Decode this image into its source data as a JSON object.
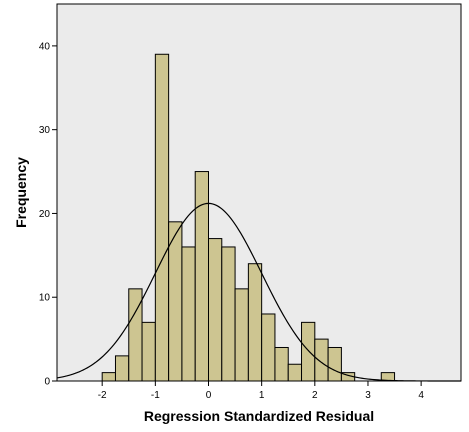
{
  "chart_data": {
    "type": "bar",
    "xlabel": "Regression Standardized Residual",
    "ylabel": "Frequency",
    "xlim": [
      -2.85,
      4.75
    ],
    "ylim": [
      0,
      45
    ],
    "x_ticks": [
      -2,
      -1,
      0,
      1,
      2,
      3,
      4
    ],
    "y_ticks": [
      0,
      10,
      20,
      30,
      40
    ],
    "bin_width": 0.25,
    "bins": [
      {
        "x0": -2.0,
        "value": 1
      },
      {
        "x0": -1.75,
        "value": 3
      },
      {
        "x0": -1.5,
        "value": 11
      },
      {
        "x0": -1.25,
        "value": 7
      },
      {
        "x0": -1.0,
        "value": 39
      },
      {
        "x0": -0.75,
        "value": 19
      },
      {
        "x0": -0.5,
        "value": 16
      },
      {
        "x0": -0.25,
        "value": 25
      },
      {
        "x0": 0.0,
        "value": 17
      },
      {
        "x0": 0.25,
        "value": 16
      },
      {
        "x0": 0.5,
        "value": 11
      },
      {
        "x0": 0.75,
        "value": 14
      },
      {
        "x0": 1.0,
        "value": 8
      },
      {
        "x0": 1.25,
        "value": 4
      },
      {
        "x0": 1.5,
        "value": 2
      },
      {
        "x0": 1.75,
        "value": 7
      },
      {
        "x0": 2.0,
        "value": 5
      },
      {
        "x0": 2.25,
        "value": 4
      },
      {
        "x0": 2.5,
        "value": 1
      },
      {
        "x0": 3.25,
        "value": 1
      }
    ],
    "normal_curve": {
      "mean": 0,
      "sd": 1,
      "peak": 21.2
    },
    "grid": false,
    "colors": {
      "plot_background": "#ebebeb",
      "bar_fill": "#cdc591",
      "bar_stroke": "#000000",
      "curve": "#000000"
    }
  }
}
